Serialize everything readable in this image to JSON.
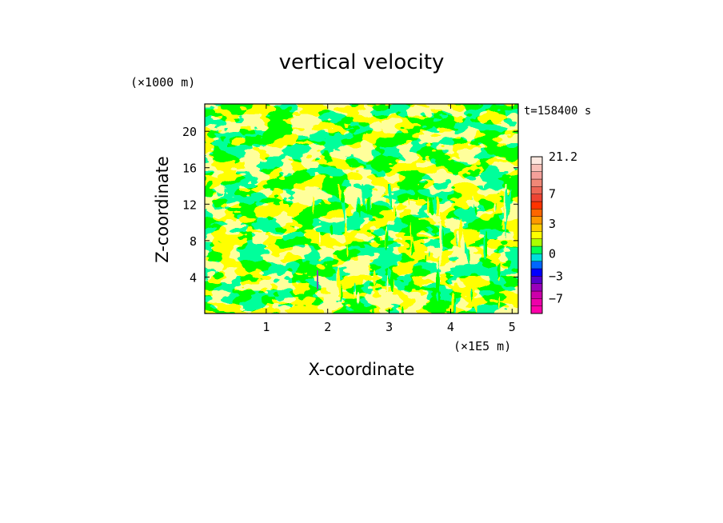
{
  "chart_data": {
    "type": "heatmap",
    "title": "vertical velocity",
    "xlabel": "X-coordinate",
    "ylabel": "Z-coordinate",
    "x_unit_label": "(×1E5 m)",
    "y_unit_label": "(×1000 m)",
    "time_label": "t=158400 s",
    "xlim": [
      0,
      5.1
    ],
    "ylim": [
      0,
      23
    ],
    "x_ticks": [
      1,
      2,
      3,
      4,
      5
    ],
    "x_tick_labels": [
      "1",
      "2",
      "3",
      "4",
      "5"
    ],
    "y_ticks": [
      4,
      8,
      12,
      16,
      20
    ],
    "y_tick_labels": [
      "4",
      "8",
      "12",
      "16",
      "20"
    ],
    "field_description_colors": {
      "positive_small": "#ffff00",
      "near_zero": "#00ff55",
      "negative_streak": "#7a50b0"
    },
    "colorbar": {
      "range": [
        -10,
        21.2
      ],
      "levels": [
        -10,
        -8.5,
        -7,
        -5.5,
        -4,
        -3,
        -2,
        -1,
        0,
        0.5,
        1,
        2,
        3,
        4,
        5,
        6,
        7,
        9,
        11,
        14,
        17,
        21.2
      ],
      "colors": [
        "#ff00aa",
        "#ee00aa",
        "#cc00aa",
        "#9900bb",
        "#5500cc",
        "#0000ff",
        "#0066ff",
        "#00dddd",
        "#00ff55",
        "#aaff00",
        "#ffff00",
        "#ffcc00",
        "#ff9900",
        "#ff6600",
        "#ff3300",
        "#ee4433",
        "#ee6655",
        "#f08877",
        "#f4a09a",
        "#f8c0b8",
        "#fde8e0"
      ],
      "tick_values": [
        21.2,
        7,
        3,
        0,
        -3,
        -7
      ],
      "tick_labels": [
        "21.2",
        "7",
        "3",
        "0",
        "−3",
        "−7"
      ]
    }
  }
}
